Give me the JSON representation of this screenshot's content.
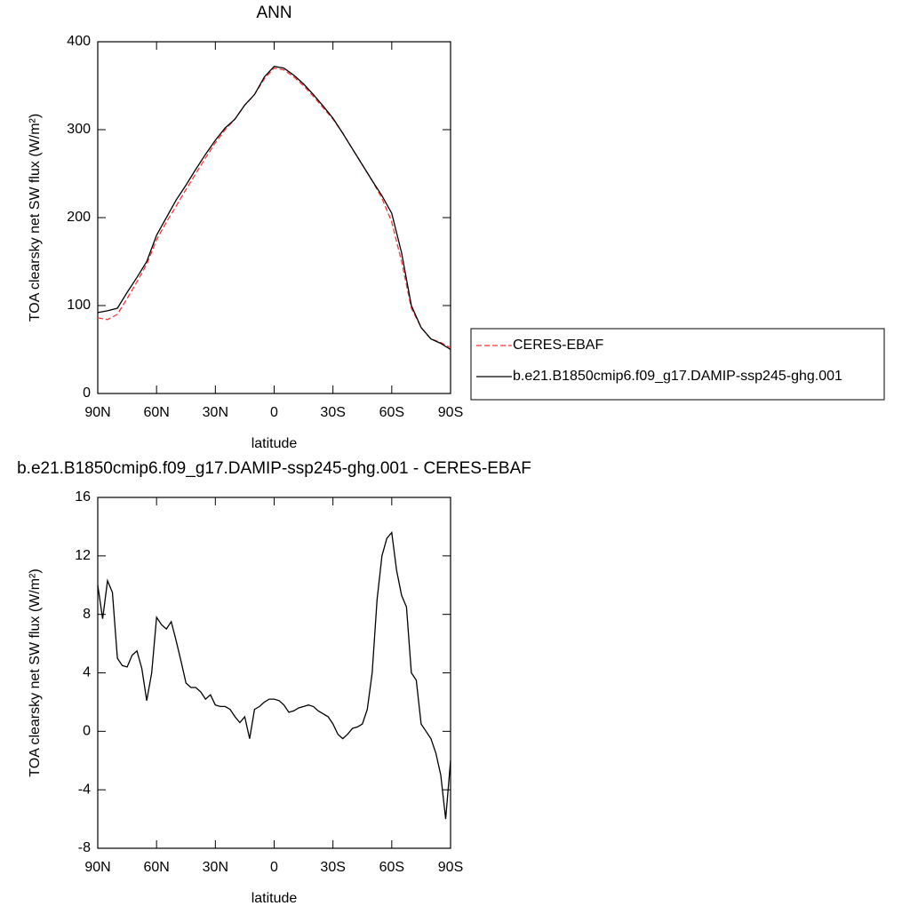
{
  "chart_data": [
    {
      "type": "line",
      "title": "ANN",
      "x_label": "latitude",
      "y_label": "TOA clearsky net SW flux (W/m²)",
      "x": [
        90,
        85,
        80,
        75,
        70,
        65,
        60,
        55,
        50,
        45,
        40,
        35,
        30,
        25,
        20,
        15,
        10,
        5,
        0,
        -5,
        -10,
        -15,
        -20,
        -25,
        -30,
        -35,
        -40,
        -45,
        -50,
        -55,
        -60,
        -65,
        -70,
        -75,
        -80,
        -85,
        -90
      ],
      "series": [
        {
          "name": "CERES-EBAF",
          "color": "#ff3333",
          "dash": true,
          "values": [
            86,
            84,
            90,
            108,
            127,
            147,
            175,
            195,
            213,
            232,
            250,
            268,
            285,
            300,
            312,
            328,
            340,
            358,
            370,
            368,
            360,
            350,
            338,
            325,
            312,
            296,
            278,
            260,
            242,
            222,
            195,
            150,
            97,
            75,
            62,
            58,
            52
          ]
        },
        {
          "name": "b.e21.B1850cmip6.f09_g17.DAMIP-ssp245-ghg.001",
          "color": "#000000",
          "dash": false,
          "values": [
            92,
            94,
            97,
            115,
            132,
            150,
            180,
            200,
            220,
            237,
            255,
            272,
            288,
            302,
            312,
            328,
            340,
            360,
            372,
            370,
            362,
            352,
            340,
            327,
            313,
            296,
            278,
            260,
            242,
            225,
            205,
            160,
            100,
            75,
            62,
            57,
            50
          ]
        }
      ],
      "xlim": [
        90,
        -90
      ],
      "xticks": [
        {
          "value": 90,
          "label": "90N"
        },
        {
          "value": 60,
          "label": "60N"
        },
        {
          "value": 30,
          "label": "30N"
        },
        0,
        {
          "value": -30,
          "label": "30S"
        },
        {
          "value": -60,
          "label": "60S"
        },
        {
          "value": -90,
          "label": "90S"
        }
      ],
      "ylim": [
        0,
        400
      ],
      "yticks": [
        0,
        100,
        200,
        300,
        400
      ],
      "legend": "right"
    },
    {
      "type": "line",
      "title": "b.e21.B1850cmip6.f09_g17.DAMIP-ssp245-ghg.001 - CERES-EBAF",
      "x_label": "latitude",
      "y_label": "TOA clearsky net SW flux (W/m²)",
      "x": [
        90,
        87.5,
        85,
        82.5,
        80,
        77.5,
        75,
        72.5,
        70,
        67.5,
        65,
        62.5,
        60,
        57.5,
        55,
        52.5,
        50,
        47.5,
        45,
        42.5,
        40,
        37.5,
        35,
        32.5,
        30,
        27.5,
        25,
        22.5,
        20,
        17.5,
        15,
        12.5,
        10,
        7.5,
        5,
        2.5,
        0,
        -2.5,
        -5,
        -7.5,
        -10,
        -12.5,
        -15,
        -17.5,
        -20,
        -22.5,
        -25,
        -27.5,
        -30,
        -32.5,
        -35,
        -37.5,
        -40,
        -42.5,
        -45,
        -47.5,
        -50,
        -52.5,
        -55,
        -57.5,
        -60,
        -62.5,
        -65,
        -67.5,
        -70,
        -72.5,
        -75,
        -77.5,
        -80,
        -82.5,
        -85,
        -87.5,
        -90
      ],
      "series": [
        {
          "color": "#000000",
          "dash": false,
          "values": [
            10,
            7.7,
            10.3,
            9.5,
            5,
            4.5,
            4.4,
            5.2,
            5.5,
            4.3,
            2.1,
            4,
            7.8,
            7.3,
            7.0,
            7.5,
            6.2,
            4.8,
            3.3,
            3.0,
            3.0,
            2.7,
            2.2,
            2.5,
            1.8,
            1.7,
            1.7,
            1.5,
            1.0,
            0.6,
            1.0,
            -0.5,
            1.5,
            1.7,
            2.0,
            2.2,
            2.2,
            2.1,
            1.8,
            1.3,
            1.4,
            1.6,
            1.7,
            1.8,
            1.7,
            1.4,
            1.2,
            1.0,
            0.5,
            -0.2,
            -0.5,
            -0.2,
            0.2,
            0.3,
            0.5,
            1.5,
            4.0,
            9,
            12,
            13.2,
            13.6,
            11.0,
            9.3,
            8.5,
            4.0,
            3.5,
            0.5,
            0.0,
            -0.5,
            -1.5,
            -3,
            -6,
            -2
          ]
        }
      ],
      "xlim": [
        90,
        -90
      ],
      "xticks": [
        {
          "value": 90,
          "label": "90N"
        },
        {
          "value": 60,
          "label": "60N"
        },
        {
          "value": 30,
          "label": "30N"
        },
        0,
        {
          "value": -30,
          "label": "30S"
        },
        {
          "value": -60,
          "label": "60S"
        },
        {
          "value": -90,
          "label": "90S"
        }
      ],
      "ylim": [
        -8,
        16
      ],
      "yticks": [
        -8,
        -4,
        0,
        4,
        8,
        12,
        16
      ]
    }
  ]
}
